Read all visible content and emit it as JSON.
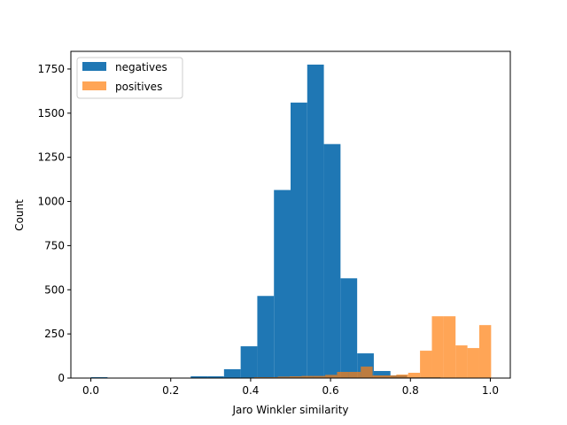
{
  "chart_data": {
    "type": "bar",
    "subtype": "overlapping histogram",
    "title": "",
    "xlabel": "Jaro Winkler similarity",
    "ylabel": "Count",
    "xlim": [
      -0.05,
      1.05
    ],
    "ylim": [
      0,
      1850
    ],
    "xticks": [
      0.0,
      0.2,
      0.4,
      0.6,
      0.8,
      1.0
    ],
    "xtick_labels": [
      "0.0",
      "0.2",
      "0.4",
      "0.6",
      "0.8",
      "1.0"
    ],
    "yticks": [
      0,
      250,
      500,
      750,
      1000,
      1250,
      1500,
      1750
    ],
    "ytick_labels": [
      "0",
      "250",
      "500",
      "750",
      "1000",
      "1250",
      "1500",
      "1750"
    ],
    "grid": false,
    "legend_position": "upper-left",
    "series": [
      {
        "name": "negatives",
        "color": "#1f77b4",
        "opacity": 1.0,
        "bin_edges": [
          0.0,
          0.04167,
          0.08333,
          0.125,
          0.16667,
          0.20833,
          0.25,
          0.29167,
          0.33333,
          0.375,
          0.41667,
          0.45833,
          0.5,
          0.54167,
          0.58333,
          0.625,
          0.66667,
          0.70833,
          0.75,
          0.79167,
          0.83333,
          0.875,
          0.91667,
          0.95833,
          1.0
        ],
        "values": [
          5,
          0,
          0,
          0,
          0,
          0,
          10,
          10,
          50,
          180,
          465,
          1065,
          1560,
          1775,
          1325,
          565,
          140,
          40,
          15,
          5,
          5,
          0,
          0,
          0
        ]
      },
      {
        "name": "positives",
        "color": "#ff7f0e",
        "opacity": 0.7,
        "bin_edges": [
          0.29,
          0.3197,
          0.3493,
          0.379,
          0.4087,
          0.4383,
          0.468,
          0.4977,
          0.5273,
          0.557,
          0.5867,
          0.6163,
          0.646,
          0.6757,
          0.7053,
          0.735,
          0.7647,
          0.7943,
          0.824,
          0.8537,
          0.8833,
          0.913,
          0.9427,
          0.9723,
          1.002
        ],
        "values": [
          2,
          0,
          2,
          3,
          5,
          5,
          8,
          10,
          12,
          12,
          18,
          35,
          35,
          65,
          15,
          15,
          20,
          30,
          155,
          350,
          350,
          185,
          170,
          300
        ]
      }
    ]
  }
}
